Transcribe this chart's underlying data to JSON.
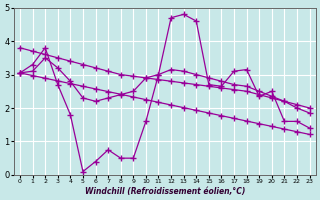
{
  "x": [
    0,
    1,
    2,
    3,
    4,
    5,
    6,
    7,
    8,
    9,
    10,
    11,
    12,
    13,
    14,
    15,
    16,
    17,
    18,
    19,
    20,
    21,
    22,
    23
  ],
  "y_main": [
    3.05,
    3.3,
    3.8,
    2.7,
    1.8,
    0.1,
    0.4,
    0.75,
    0.5,
    0.5,
    1.6,
    3.0,
    4.7,
    4.8,
    4.6,
    2.7,
    2.65,
    3.1,
    3.15,
    2.35,
    2.5,
    1.6,
    1.6,
    1.4
  ],
  "y_trend1": [
    3.8,
    3.7,
    3.6,
    3.5,
    3.4,
    3.3,
    3.2,
    3.1,
    3.0,
    2.95,
    2.9,
    2.85,
    2.8,
    2.75,
    2.7,
    2.65,
    2.6,
    2.55,
    2.5,
    2.4,
    2.3,
    2.2,
    2.1,
    2.0
  ],
  "y_trend2": [
    3.05,
    2.97,
    2.89,
    2.81,
    2.73,
    2.65,
    2.57,
    2.49,
    2.41,
    2.33,
    2.25,
    2.17,
    2.09,
    2.01,
    1.93,
    1.85,
    1.77,
    1.69,
    1.61,
    1.53,
    1.45,
    1.37,
    1.29,
    1.21
  ],
  "y_smooth": [
    3.05,
    3.1,
    3.5,
    3.2,
    2.8,
    2.3,
    2.2,
    2.3,
    2.4,
    2.5,
    2.9,
    3.0,
    3.15,
    3.1,
    3.0,
    2.9,
    2.8,
    2.7,
    2.65,
    2.5,
    2.35,
    2.2,
    2.0,
    1.85
  ],
  "line_color": "#990099",
  "bg_color": "#c8e8e8",
  "grid_color": "#ffffff",
  "xlabel": "Windchill (Refroidissement éolien,°C)",
  "ylim": [
    0,
    5
  ],
  "xlim": [
    -0.5,
    23.5
  ],
  "yticks": [
    0,
    1,
    2,
    3,
    4,
    5
  ],
  "xticks": [
    0,
    1,
    2,
    3,
    4,
    5,
    6,
    7,
    8,
    9,
    10,
    11,
    12,
    13,
    14,
    15,
    16,
    17,
    18,
    19,
    20,
    21,
    22,
    23
  ]
}
